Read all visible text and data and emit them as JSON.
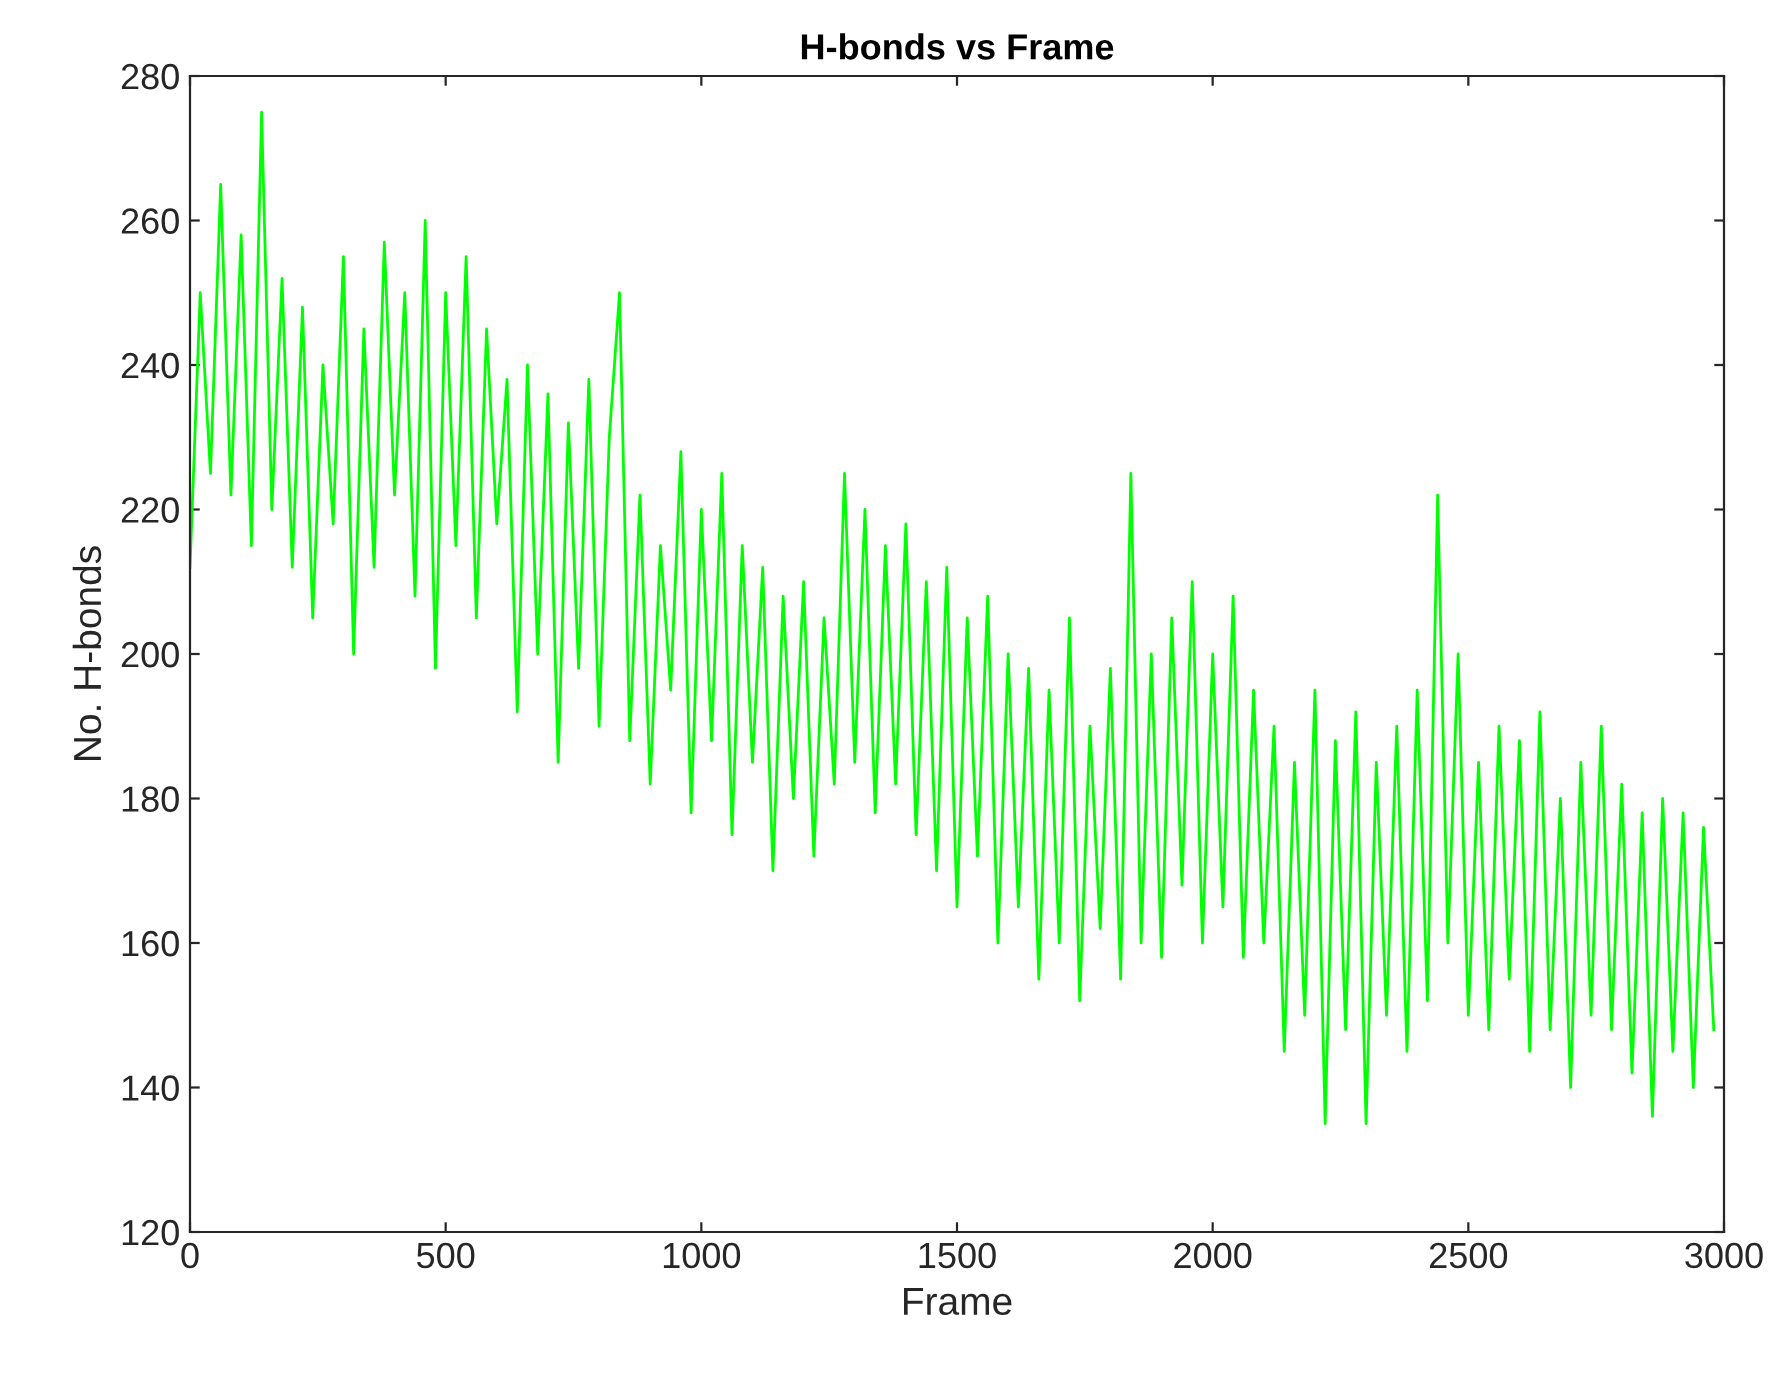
{
  "chart_data": {
    "type": "line",
    "title": "H-bonds vs Frame",
    "xlabel": "Frame",
    "ylabel": "No. H-bonds",
    "xlim": [
      0,
      3000
    ],
    "xticks": [
      0,
      500,
      1000,
      1500,
      2000,
      2500,
      3000
    ],
    "ylim": [
      120,
      280
    ],
    "yticks": [
      120,
      140,
      160,
      180,
      200,
      220,
      240,
      260,
      280
    ],
    "grid": false,
    "marker": "none",
    "line_style": "solid",
    "series": [
      {
        "color": "#00ff00",
        "x": [
          0,
          20,
          40,
          60,
          80,
          100,
          120,
          140,
          160,
          180,
          200,
          220,
          240,
          260,
          280,
          300,
          320,
          340,
          360,
          380,
          400,
          420,
          440,
          460,
          480,
          500,
          520,
          540,
          560,
          580,
          600,
          620,
          640,
          660,
          680,
          700,
          720,
          740,
          760,
          780,
          800,
          820,
          840,
          860,
          880,
          900,
          920,
          940,
          960,
          980,
          1000,
          1020,
          1040,
          1060,
          1080,
          1100,
          1120,
          1140,
          1160,
          1180,
          1200,
          1220,
          1240,
          1260,
          1280,
          1300,
          1320,
          1340,
          1360,
          1380,
          1400,
          1420,
          1440,
          1460,
          1480,
          1500,
          1520,
          1540,
          1560,
          1580,
          1600,
          1620,
          1640,
          1660,
          1680,
          1700,
          1720,
          1740,
          1760,
          1780,
          1800,
          1820,
          1840,
          1860,
          1880,
          1900,
          1920,
          1940,
          1960,
          1980,
          2000,
          2020,
          2040,
          2060,
          2080,
          2100,
          2120,
          2140,
          2160,
          2180,
          2200,
          2220,
          2240,
          2260,
          2280,
          2300,
          2320,
          2340,
          2360,
          2380,
          2400,
          2420,
          2440,
          2460,
          2480,
          2500,
          2520,
          2540,
          2560,
          2580,
          2600,
          2620,
          2640,
          2660,
          2680,
          2700,
          2720,
          2740,
          2760,
          2780,
          2800,
          2820,
          2840,
          2860,
          2880,
          2900,
          2920,
          2940,
          2960,
          2980
        ],
        "values": [
          212,
          250,
          225,
          265,
          222,
          258,
          215,
          275,
          220,
          252,
          212,
          248,
          205,
          240,
          218,
          255,
          200,
          245,
          212,
          257,
          222,
          250,
          208,
          260,
          198,
          250,
          215,
          255,
          205,
          245,
          218,
          238,
          192,
          240,
          200,
          236,
          185,
          232,
          198,
          238,
          190,
          230,
          250,
          188,
          222,
          182,
          215,
          195,
          228,
          178,
          220,
          188,
          225,
          175,
          215,
          185,
          212,
          170,
          208,
          180,
          210,
          172,
          205,
          182,
          225,
          185,
          220,
          178,
          215,
          182,
          218,
          175,
          210,
          170,
          212,
          165,
          205,
          172,
          208,
          160,
          200,
          165,
          198,
          155,
          195,
          160,
          205,
          152,
          190,
          162,
          198,
          155,
          225,
          160,
          200,
          158,
          205,
          168,
          210,
          160,
          200,
          165,
          208,
          158,
          195,
          160,
          190,
          145,
          185,
          150,
          195,
          135,
          188,
          148,
          192,
          135,
          185,
          150,
          190,
          145,
          195,
          152,
          222,
          160,
          200,
          150,
          185,
          148,
          190,
          155,
          188,
          145,
          192,
          148,
          180,
          140,
          185,
          150,
          190,
          148,
          182,
          142,
          178,
          136,
          180,
          145,
          178,
          140,
          176,
          148
        ]
      }
    ]
  }
}
